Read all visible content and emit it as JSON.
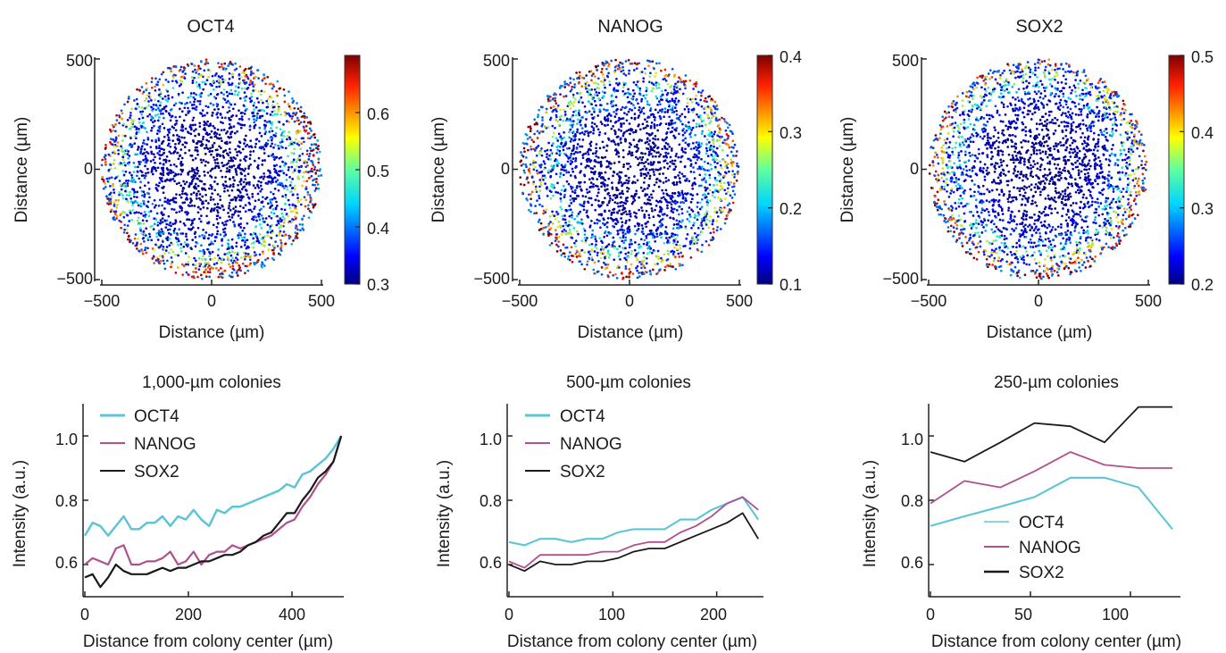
{
  "chart_data": [
    {
      "type": "scatter",
      "title": "OCT4",
      "xlabel": "Distance (µm)",
      "ylabel": "Distance (µm)",
      "xlim": [
        -500,
        500
      ],
      "ylim": [
        -500,
        500
      ],
      "x_ticks": [
        "−500",
        "0",
        "500"
      ],
      "y_ticks": [
        "500",
        "0",
        "−500"
      ],
      "colorbar": {
        "range": [
          0.3,
          0.7
        ],
        "ticks": [
          "0.6",
          "0.5",
          "0.4",
          "0.3"
        ],
        "colormap": "jet"
      },
      "pattern": {
        "colony_radius": 500,
        "center_value": 0.3,
        "edge_value": 0.68,
        "edge_exponent": 3.2,
        "uneven_edge": "right"
      }
    },
    {
      "type": "scatter",
      "title": "NANOG",
      "xlabel": "Distance (µm)",
      "ylabel": "Distance (µm)",
      "xlim": [
        -500,
        500
      ],
      "ylim": [
        -500,
        500
      ],
      "x_ticks": [
        "−500",
        "0",
        "500"
      ],
      "y_ticks": [
        "500",
        "0",
        "−500"
      ],
      "colorbar": {
        "range": [
          0.1,
          0.4
        ],
        "ticks": [
          "0.4",
          "0.3",
          "0.2",
          "0.1"
        ],
        "colormap": "jet"
      },
      "pattern": {
        "colony_radius": 500,
        "center_value": 0.1,
        "edge_value": 0.36,
        "edge_exponent": 3.0,
        "uneven_edge": "left"
      }
    },
    {
      "type": "scatter",
      "title": "SOX2",
      "xlabel": "Distance (µm)",
      "ylabel": "Distance (µm)",
      "xlim": [
        -500,
        500
      ],
      "ylim": [
        -500,
        500
      ],
      "x_ticks": [
        "−500",
        "0",
        "500"
      ],
      "y_ticks": [
        "500",
        "0",
        "−500"
      ],
      "colorbar": {
        "range": [
          0.2,
          0.5
        ],
        "ticks": [
          "0.5",
          "0.4",
          "0.3",
          "0.2"
        ],
        "colormap": "jet"
      },
      "pattern": {
        "colony_radius": 500,
        "center_value": 0.2,
        "edge_value": 0.47,
        "edge_exponent": 3.6,
        "uneven_edge": "bottom"
      }
    },
    {
      "type": "line",
      "title": "1,000-µm colonies",
      "xlabel": "Distance from colony center (µm)",
      "ylabel": "Intensity (a.u.)",
      "xlim": [
        0,
        500
      ],
      "ylim": [
        0.5,
        1.1
      ],
      "x_ticks": [
        "0",
        "200",
        "400"
      ],
      "y_ticks": [
        "1.0",
        "0.8",
        "0.6"
      ],
      "legend": "top-left",
      "x": [
        0,
        15,
        30,
        45,
        60,
        75,
        90,
        105,
        120,
        135,
        150,
        165,
        180,
        195,
        210,
        225,
        240,
        255,
        270,
        285,
        300,
        315,
        330,
        345,
        360,
        375,
        390,
        405,
        420,
        435,
        450,
        465,
        480,
        495
      ],
      "series": [
        {
          "name": "OCT4",
          "color": "#5cc5d6",
          "values": [
            0.69,
            0.73,
            0.72,
            0.69,
            0.72,
            0.75,
            0.71,
            0.71,
            0.73,
            0.73,
            0.75,
            0.72,
            0.75,
            0.74,
            0.77,
            0.74,
            0.72,
            0.77,
            0.76,
            0.78,
            0.78,
            0.79,
            0.8,
            0.81,
            0.82,
            0.83,
            0.85,
            0.84,
            0.88,
            0.89,
            0.91,
            0.93,
            0.96,
            1.0
          ]
        },
        {
          "name": "NANOG",
          "color": "#b0508e",
          "values": [
            0.6,
            0.62,
            0.61,
            0.6,
            0.65,
            0.66,
            0.6,
            0.6,
            0.61,
            0.61,
            0.62,
            0.64,
            0.6,
            0.61,
            0.64,
            0.6,
            0.63,
            0.64,
            0.64,
            0.66,
            0.65,
            0.66,
            0.67,
            0.68,
            0.69,
            0.71,
            0.73,
            0.74,
            0.78,
            0.81,
            0.85,
            0.88,
            0.92,
            1.0
          ]
        },
        {
          "name": "SOX2",
          "color": "#1a1a1a",
          "values": [
            0.56,
            0.57,
            0.53,
            0.56,
            0.6,
            0.58,
            0.57,
            0.57,
            0.57,
            0.58,
            0.59,
            0.58,
            0.59,
            0.59,
            0.6,
            0.61,
            0.61,
            0.62,
            0.63,
            0.63,
            0.64,
            0.66,
            0.67,
            0.69,
            0.7,
            0.73,
            0.76,
            0.76,
            0.8,
            0.83,
            0.87,
            0.89,
            0.92,
            1.0
          ]
        }
      ]
    },
    {
      "type": "line",
      "title": "500-µm colonies",
      "xlabel": "Distance from colony center (µm)",
      "ylabel": "Intensity (a.u.)",
      "xlim": [
        0,
        245
      ],
      "ylim": [
        0.5,
        1.1
      ],
      "x_ticks": [
        "0",
        "100",
        "200"
      ],
      "y_ticks": [
        "1.0",
        "0.8",
        "0.6"
      ],
      "legend": "top-left",
      "x": [
        0,
        15,
        30,
        45,
        60,
        75,
        90,
        105,
        120,
        135,
        150,
        165,
        180,
        195,
        210,
        225,
        240
      ],
      "series": [
        {
          "name": "OCT4",
          "color": "#5cc5d6",
          "values": [
            0.67,
            0.66,
            0.68,
            0.68,
            0.67,
            0.68,
            0.68,
            0.7,
            0.71,
            0.71,
            0.71,
            0.74,
            0.74,
            0.77,
            0.79,
            0.81,
            0.74
          ]
        },
        {
          "name": "NANOG",
          "color": "#b0508e",
          "values": [
            0.61,
            0.59,
            0.63,
            0.63,
            0.63,
            0.63,
            0.64,
            0.64,
            0.66,
            0.67,
            0.67,
            0.7,
            0.72,
            0.75,
            0.79,
            0.81,
            0.77
          ]
        },
        {
          "name": "SOX2",
          "color": "#1a1a1a",
          "values": [
            0.6,
            0.58,
            0.61,
            0.6,
            0.6,
            0.61,
            0.61,
            0.62,
            0.64,
            0.65,
            0.65,
            0.67,
            0.69,
            0.71,
            0.73,
            0.76,
            0.68
          ]
        }
      ]
    },
    {
      "type": "line",
      "title": "250-µm colonies",
      "xlabel": "Distance from colony center (µm)",
      "ylabel": "Intensity (a.u.)",
      "xlim": [
        0,
        125
      ],
      "ylim": [
        0.5,
        1.1
      ],
      "x_ticks": [
        "0",
        "50",
        "100"
      ],
      "y_ticks": [
        "1.0",
        "0.8",
        "0.6"
      ],
      "legend": "bottom-right",
      "x": [
        0,
        17,
        35,
        52,
        70,
        87,
        104,
        121
      ],
      "series": [
        {
          "name": "OCT4",
          "color": "#5cc5d6",
          "values": [
            0.72,
            0.75,
            0.78,
            0.81,
            0.87,
            0.87,
            0.84,
            0.71
          ]
        },
        {
          "name": "NANOG",
          "color": "#b0508e",
          "values": [
            0.79,
            0.86,
            0.84,
            0.89,
            0.95,
            0.91,
            0.9,
            0.9
          ]
        },
        {
          "name": "SOX2",
          "color": "#1a1a1a",
          "values": [
            0.95,
            0.92,
            0.98,
            1.04,
            1.03,
            0.98,
            1.09,
            1.09
          ]
        }
      ]
    }
  ]
}
